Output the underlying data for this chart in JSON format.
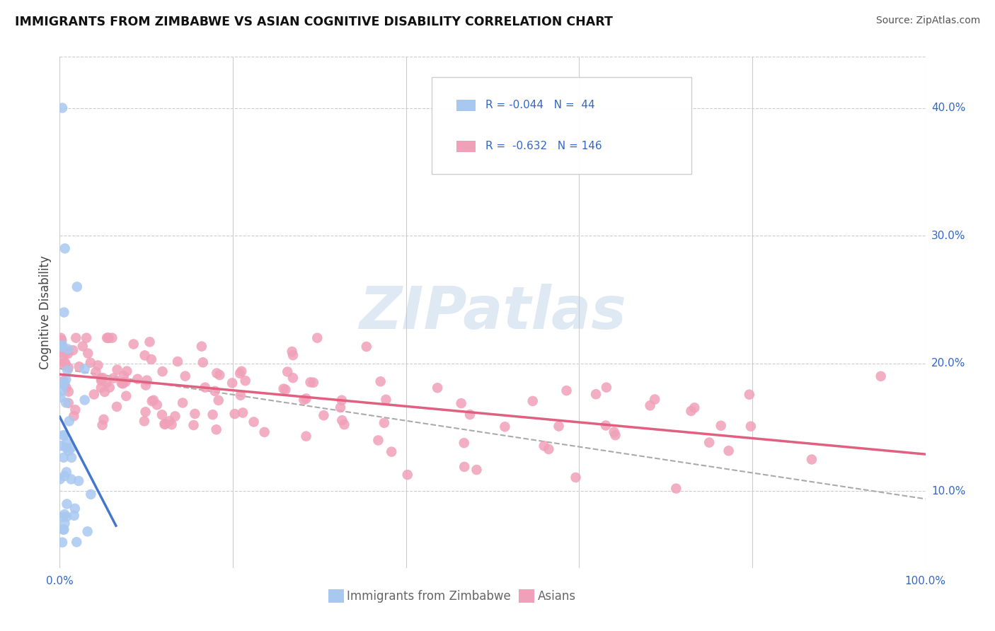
{
  "title": "IMMIGRANTS FROM ZIMBABWE VS ASIAN COGNITIVE DISABILITY CORRELATION CHART",
  "source": "Source: ZipAtlas.com",
  "ylabel": "Cognitive Disability",
  "xlim": [
    0.0,
    1.0
  ],
  "ylim": [
    0.04,
    0.44
  ],
  "xtick_positions": [
    0.0,
    0.2,
    0.4,
    0.6,
    0.8,
    1.0
  ],
  "xticklabels": [
    "0.0%",
    "",
    "",
    "",
    "",
    "100.0%"
  ],
  "ytick_positions": [
    0.1,
    0.2,
    0.3,
    0.4
  ],
  "ytick_labels": [
    "10.0%",
    "20.0%",
    "30.0%",
    "40.0%"
  ],
  "watermark": "ZIPatlas",
  "legend_r1": "R = -0.044",
  "legend_n1": "N =  44",
  "legend_r2": "R =  -0.632",
  "legend_n2": "N = 146",
  "color_blue": "#a8c8f0",
  "color_pink": "#f0a0b8",
  "color_blue_line": "#4477cc",
  "color_pink_line": "#e06080",
  "color_dashed": "#aaaaaa",
  "title_color": "#111111",
  "source_color": "#555555",
  "label_color": "#3366cc",
  "background_color": "#ffffff",
  "grid_color": "#cccccc",
  "blue_label": "Immigrants from Zimbabwe",
  "pink_label": "Asians"
}
